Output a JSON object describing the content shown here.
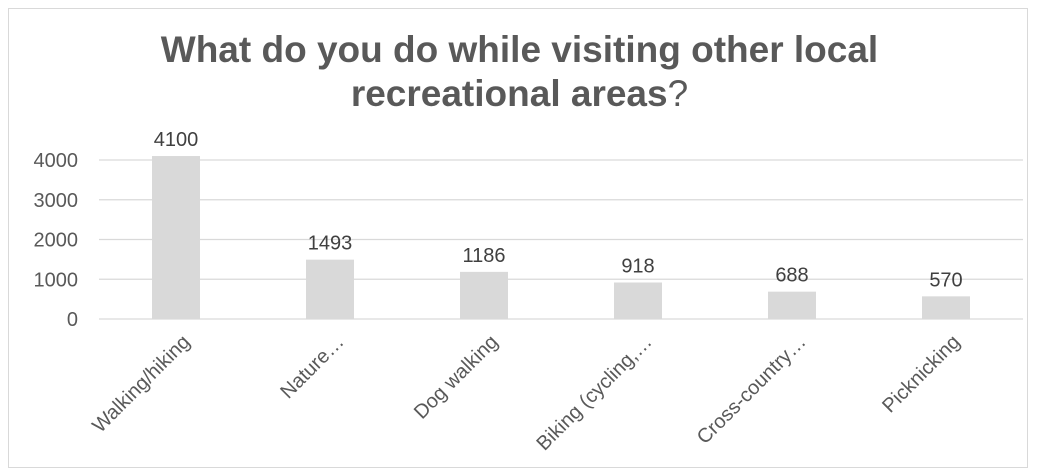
{
  "chart_data": {
    "type": "bar",
    "title_bold_line1": "What do you do while visiting other local",
    "title_bold_line2": "recreational areas",
    "title_suffix": "?",
    "categories": [
      "Walking/hiking",
      "Nature…",
      "Dog walking",
      "Biking (cycling,…",
      "Cross-country…",
      "Picknicking"
    ],
    "values": [
      4100,
      1493,
      1186,
      918,
      688,
      570
    ],
    "yticks": [
      0,
      1000,
      2000,
      3000,
      4000
    ],
    "ylim": [
      0,
      4000
    ],
    "grid": true,
    "legend": "none",
    "bar_color": "#d9d9d9",
    "grid_color": "#d9d9d9"
  }
}
